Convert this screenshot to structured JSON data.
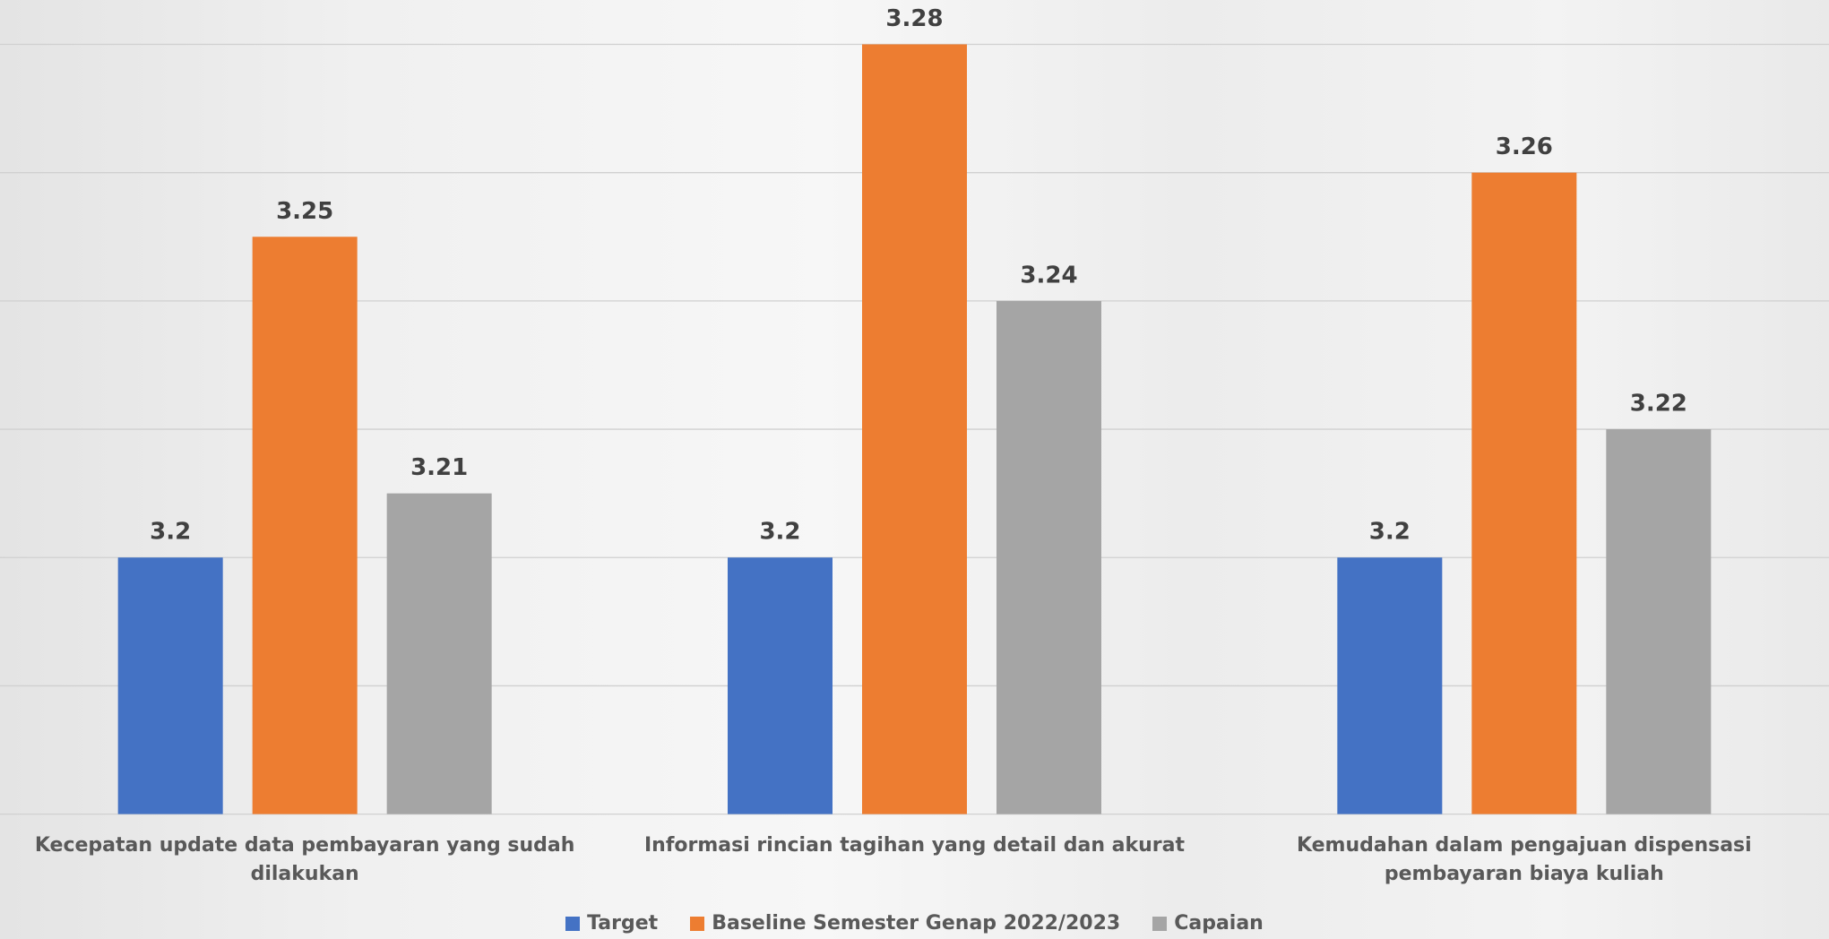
{
  "chart_data": {
    "type": "bar",
    "categories": [
      "Kecepatan update data pembayaran yang sudah dilakukan",
      "Informasi rincian tagihan yang detail dan akurat",
      "Kemudahan dalam pengajuan dispensasi pembayaran biaya kuliah"
    ],
    "series": [
      {
        "name": "Target",
        "color": "#4472c4",
        "values": [
          3.2,
          3.2,
          3.2
        ]
      },
      {
        "name": "Baseline Semester Genap 2022/2023",
        "color": "#ed7d31",
        "values": [
          3.25,
          3.28,
          3.26
        ]
      },
      {
        "name": "Capaian",
        "color": "#a5a5a5",
        "values": [
          3.21,
          3.24,
          3.22
        ]
      }
    ],
    "ylim": [
      3.16,
      3.28
    ],
    "yticks": [
      3.16,
      3.18,
      3.2,
      3.22,
      3.24,
      3.26,
      3.28
    ],
    "grid": true,
    "legend": "bottom"
  }
}
